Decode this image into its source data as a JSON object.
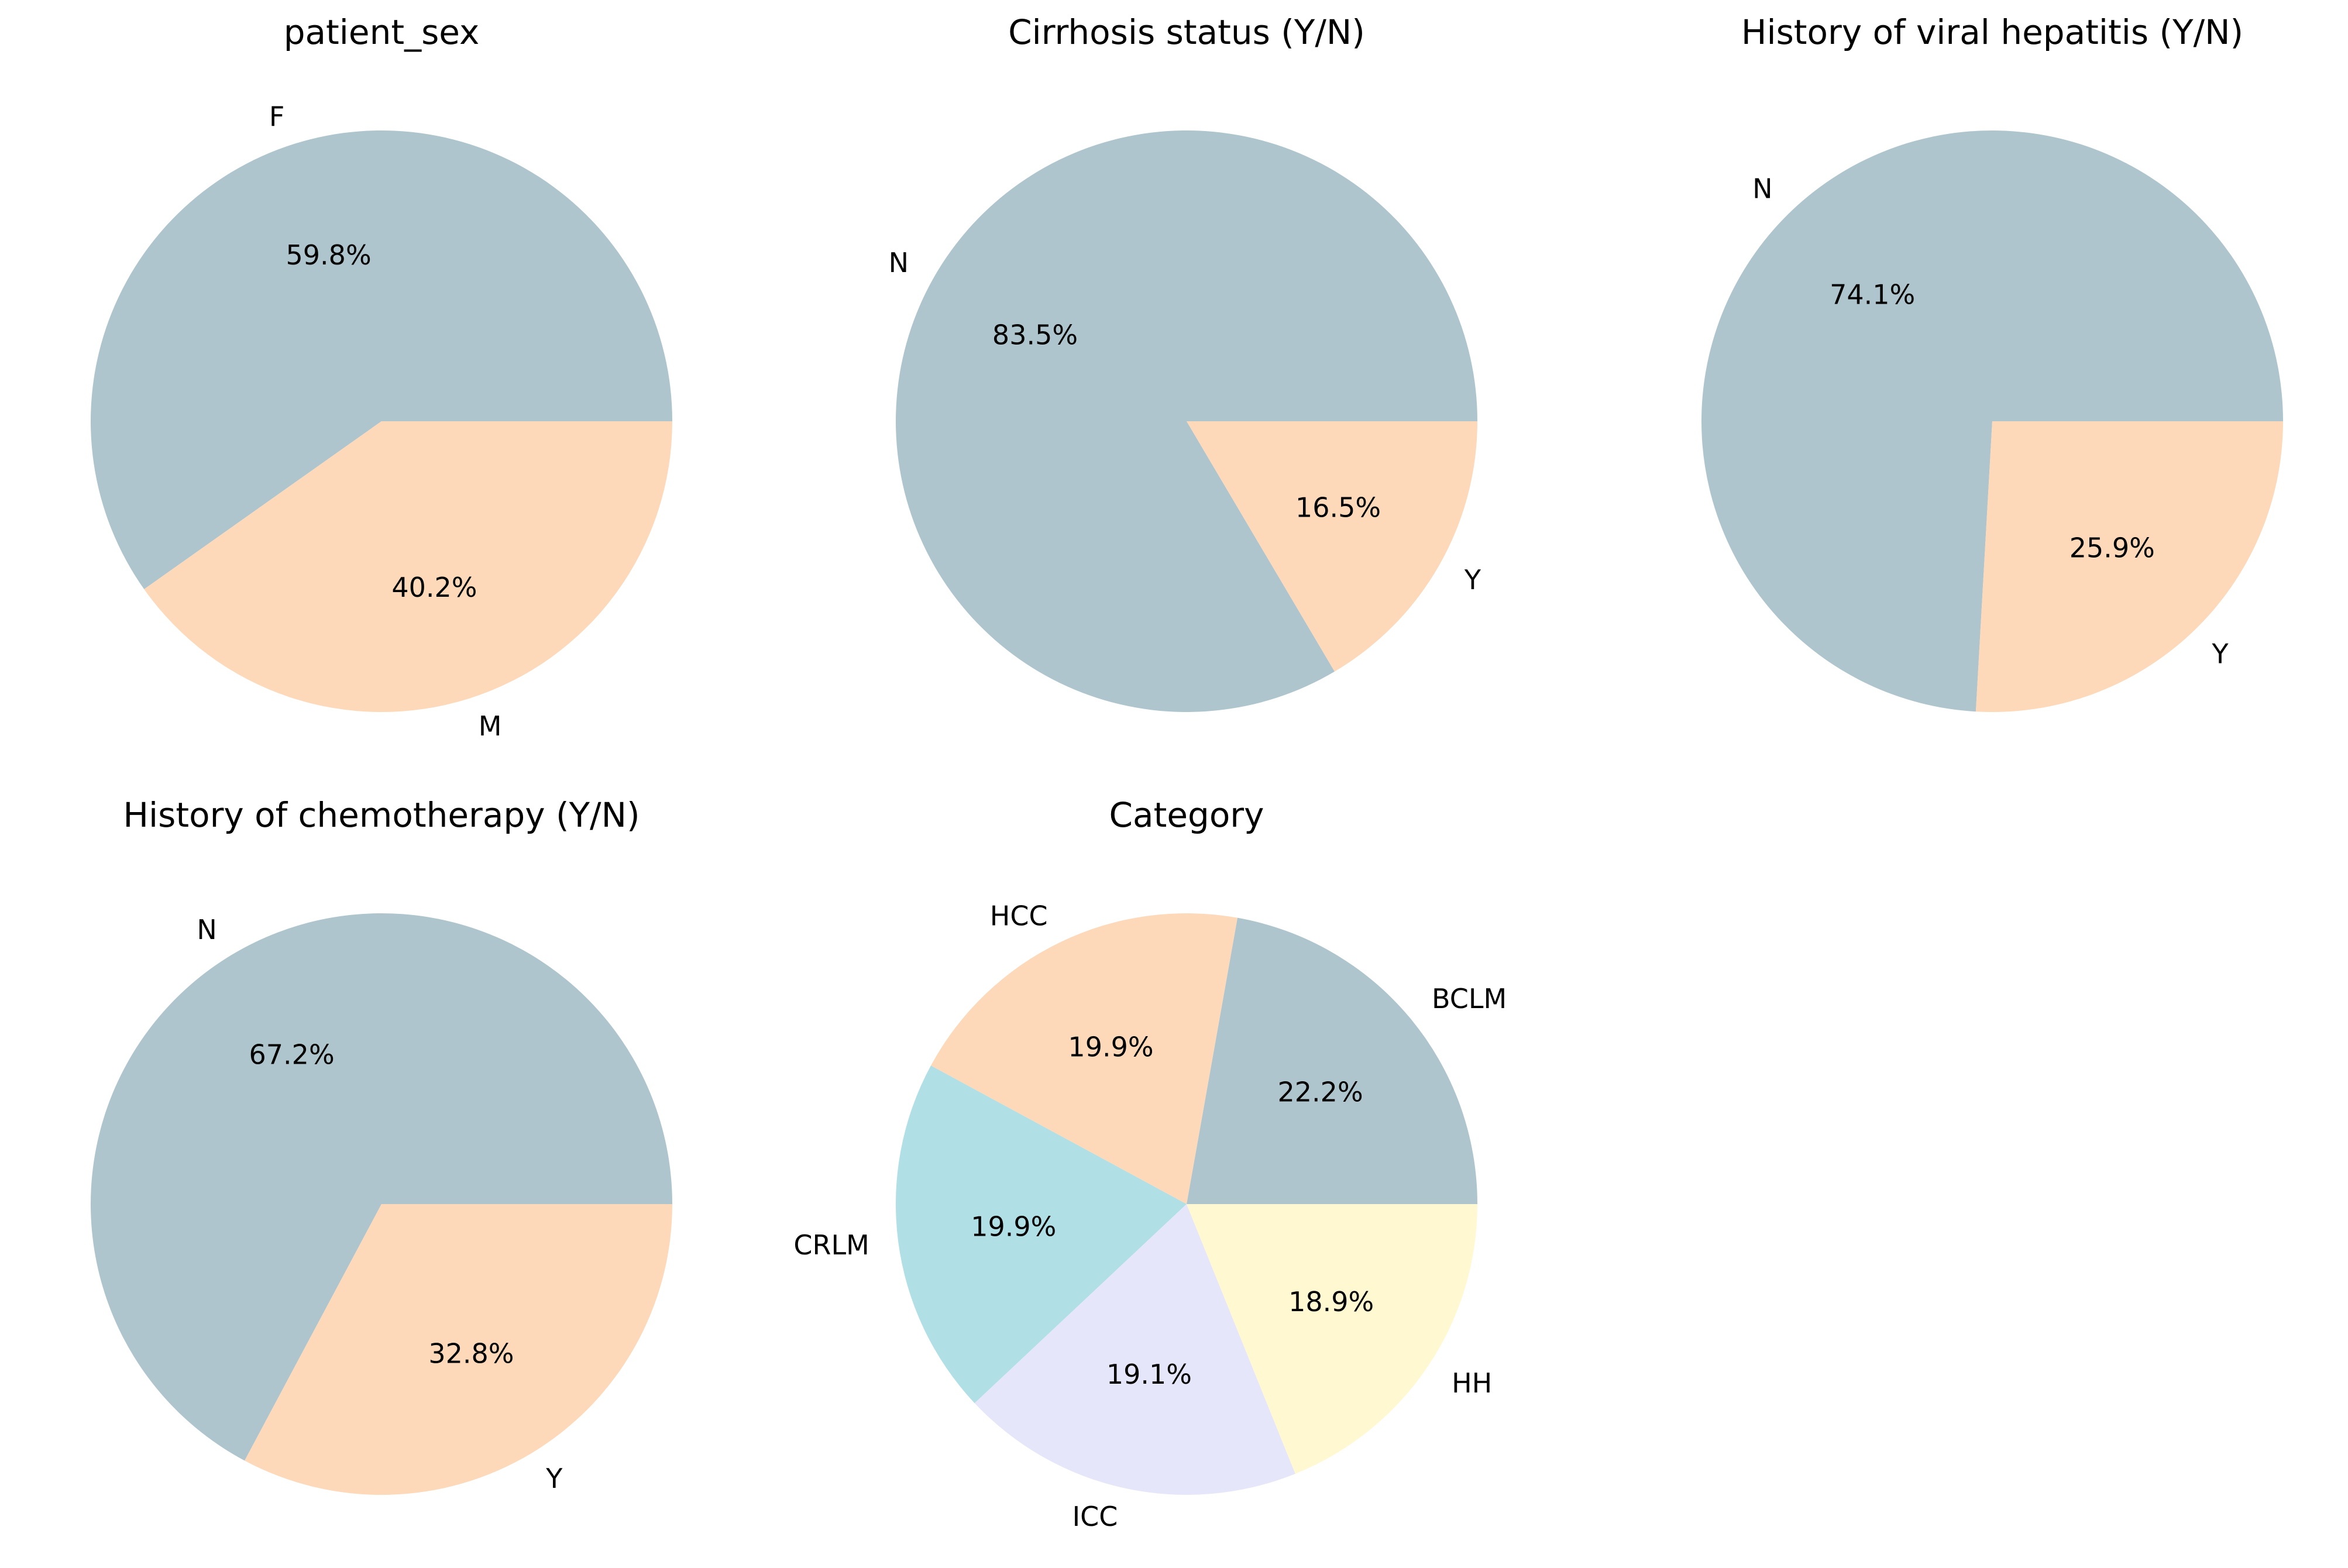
{
  "colors": [
    "#aec5ce",
    "#fdd9b9",
    "#b0dfe5",
    "#e6e6fa",
    "#fff8d0"
  ],
  "chart_data": [
    {
      "type": "pie",
      "title": "patient_sex",
      "categories": [
        "F",
        "M"
      ],
      "values": [
        59.8,
        40.2
      ],
      "value_labels": [
        "59.8%",
        "40.2%"
      ]
    },
    {
      "type": "pie",
      "title": "Cirrhosis status (Y/N)",
      "categories": [
        "N",
        "Y"
      ],
      "values": [
        83.5,
        16.5
      ],
      "value_labels": [
        "83.5%",
        "16.5%"
      ]
    },
    {
      "type": "pie",
      "title": "History of viral hepatitis (Y/N)",
      "categories": [
        "N",
        "Y"
      ],
      "values": [
        74.1,
        25.9
      ],
      "value_labels": [
        "74.1%",
        "25.9%"
      ]
    },
    {
      "type": "pie",
      "title": "History of chemotherapy (Y/N)",
      "categories": [
        "N",
        "Y"
      ],
      "values": [
        67.2,
        32.8
      ],
      "value_labels": [
        "67.2%",
        "32.8%"
      ]
    },
    {
      "type": "pie",
      "title": "Category",
      "categories": [
        "BCLM",
        "HCC",
        "CRLM",
        "ICC",
        "HH"
      ],
      "values": [
        22.2,
        19.9,
        19.9,
        19.1,
        18.9
      ],
      "value_labels": [
        "22.2%",
        "19.9%",
        "19.9%",
        "19.1%",
        "18.9%"
      ]
    }
  ]
}
